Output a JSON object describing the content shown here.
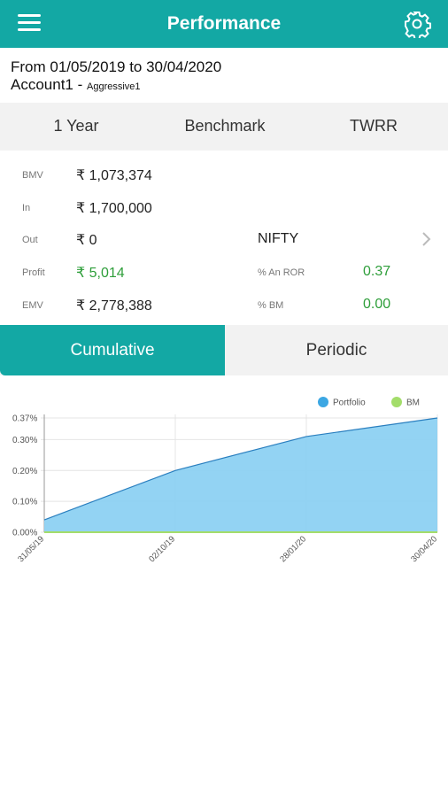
{
  "header": {
    "title": "Performance"
  },
  "summary": {
    "period": "From 01/05/2019 to 30/04/2020",
    "account": "Account1",
    "separator": " - ",
    "profile": "Aggressive1"
  },
  "selectors": {
    "period": "1 Year",
    "comparison": "Benchmark",
    "method": "TWRR"
  },
  "stats": {
    "bmv": {
      "label": "BMV",
      "value": "₹ 1,073,374"
    },
    "in": {
      "label": "In",
      "value": "₹ 1,700,000"
    },
    "out": {
      "label": "Out",
      "value": "₹ 0"
    },
    "profit": {
      "label": "Profit",
      "value": "₹ 5,014"
    },
    "emv": {
      "label": "EMV",
      "value": "₹ 2,778,388"
    }
  },
  "benchmark": {
    "name": "NIFTY",
    "an_ror": {
      "label": "% An ROR",
      "value": "0.37"
    },
    "bm": {
      "label": "% BM",
      "value": "0.00"
    }
  },
  "tabs": {
    "cumulative": "Cumulative",
    "periodic": "Periodic",
    "active": "Cumulative"
  },
  "colors": {
    "accent": "#13a8a4",
    "positive": "#2e9e3a",
    "portfolio": "#3ca7e3",
    "bm": "#a3dd6a"
  },
  "chart_data": {
    "type": "area",
    "x": [
      "31/05/19",
      "02/10/19",
      "28/01/20",
      "30/04/20"
    ],
    "yticks": [
      "0.00%",
      "0.10%",
      "0.20%",
      "0.30%",
      "0.37%"
    ],
    "ylim": [
      0,
      0.37
    ],
    "legend_position": "top-right",
    "grid": true,
    "series": [
      {
        "name": "Portfolio",
        "values": [
          0.04,
          0.2,
          0.31,
          0.37
        ]
      },
      {
        "name": "BM",
        "values": [
          0,
          0,
          0,
          0
        ]
      }
    ]
  }
}
